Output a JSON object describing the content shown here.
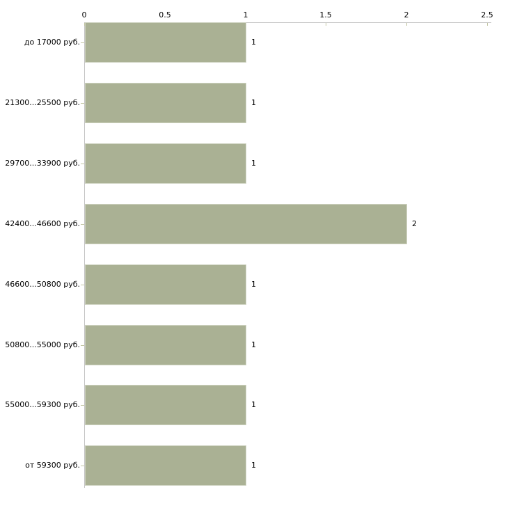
{
  "chart_data": {
    "type": "bar",
    "orientation": "horizontal",
    "title": "",
    "xlabel": "",
    "ylabel": "",
    "categories": [
      "до 17000 руб.",
      "21300...25500 руб.",
      "29700...33900 руб.",
      "42400...46600 руб.",
      "46600...50800 руб.",
      "50800...55000 руб.",
      "55000...59300 руб.",
      "от 59300 руб."
    ],
    "values": [
      1,
      1,
      1,
      2,
      1,
      1,
      1,
      1
    ],
    "value_labels": [
      "1",
      "1",
      "1",
      "2",
      "1",
      "1",
      "1",
      "1"
    ],
    "x_tick_values": [
      0,
      0.5,
      1,
      1.5,
      2,
      2.5
    ],
    "x_tick_labels": [
      "0",
      "0.5",
      "1",
      "1.5",
      "2",
      "2.5"
    ],
    "xlim": [
      0,
      2.5
    ],
    "grid": false,
    "legend_visible": false,
    "axis_position": "top",
    "colors": {
      "background": "#ffffff",
      "bar_fill": "#aab194",
      "bar_border": "#ced2c0",
      "axis_line": "#c6c6c6",
      "tick_mark": "#c3c6a3",
      "text": "#000000"
    }
  }
}
